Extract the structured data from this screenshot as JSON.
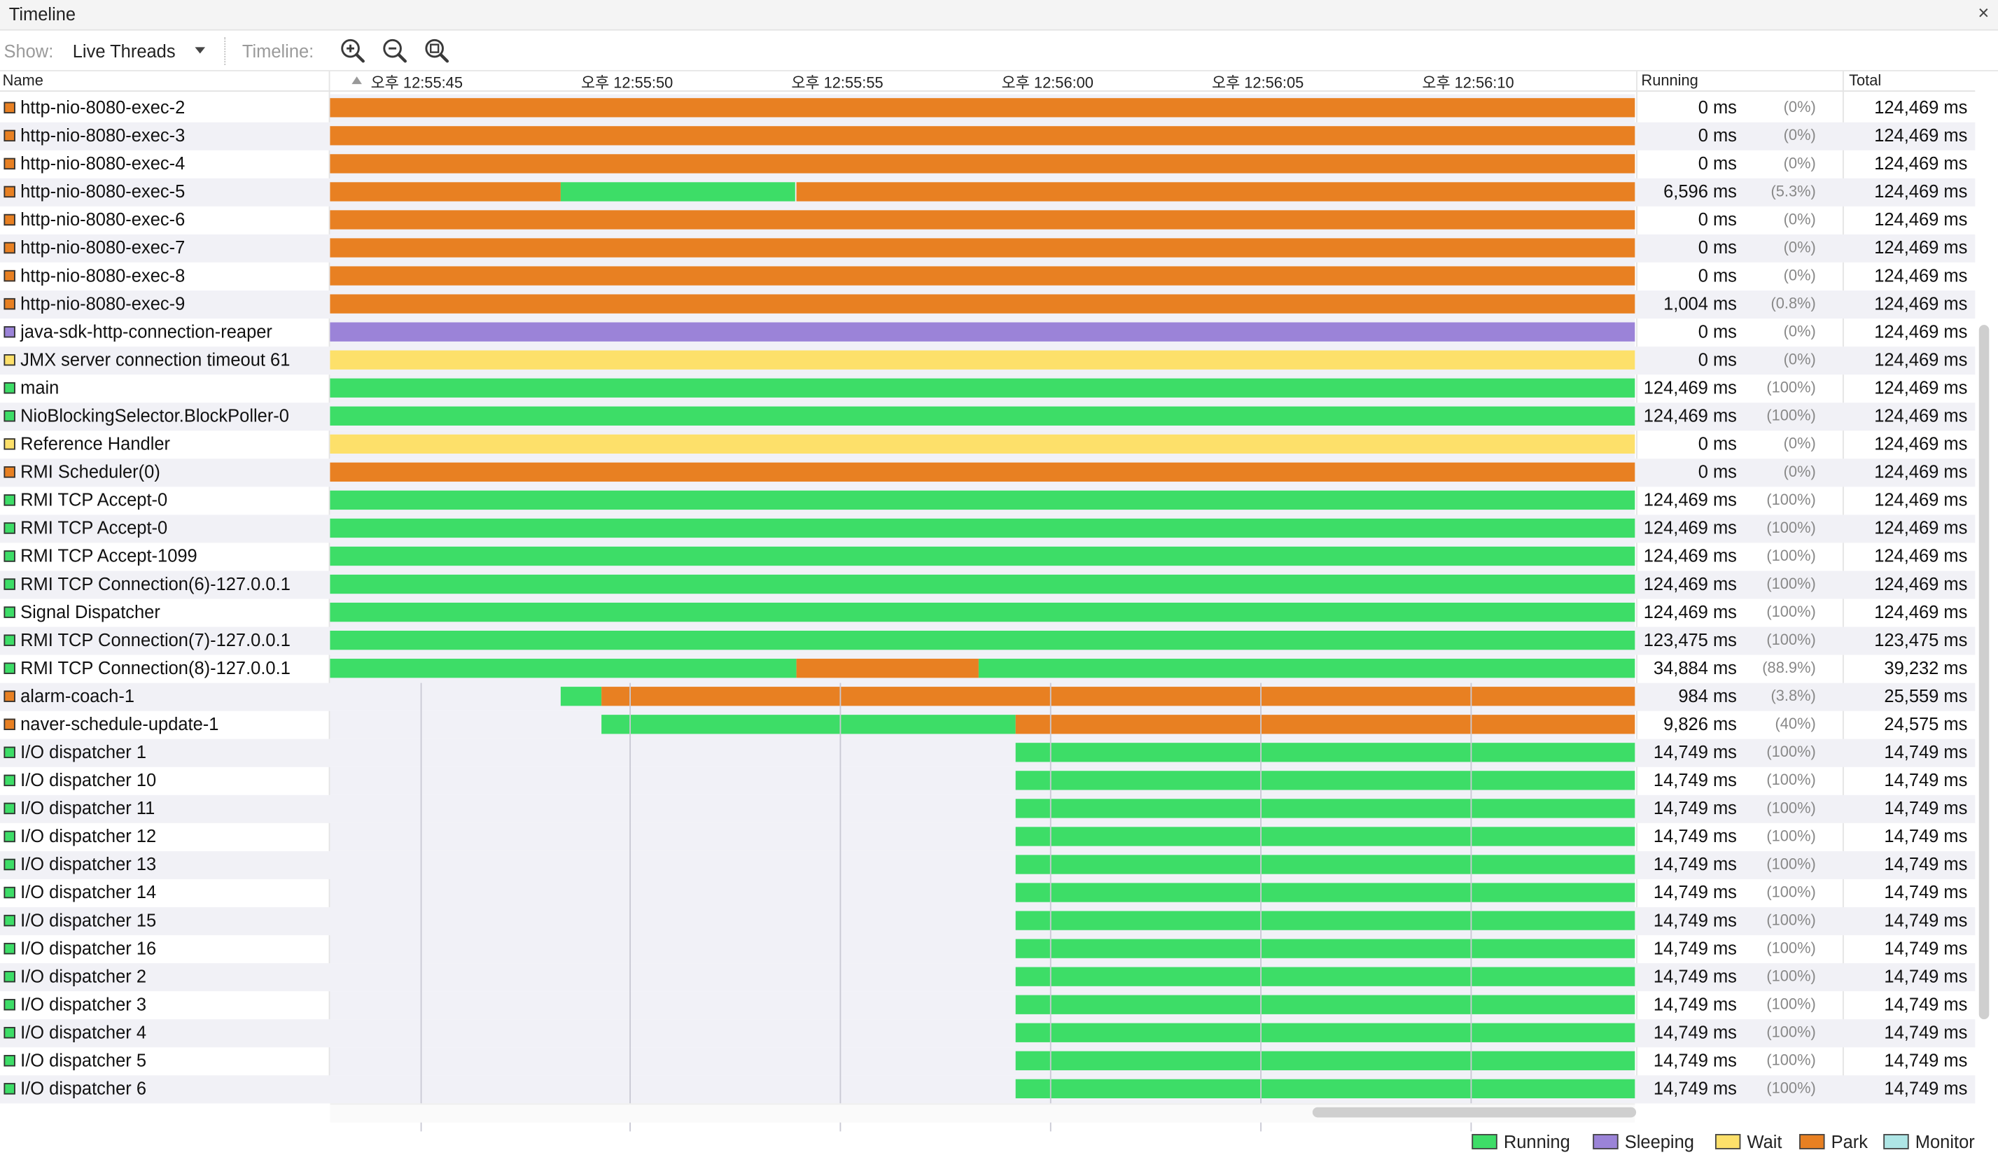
{
  "window": {
    "title": "Timeline",
    "close_glyph": "×"
  },
  "toolbar": {
    "show_label": "Show:",
    "show_value": "Live Threads",
    "timeline_label": "Timeline:",
    "zoom_in_icon": "zoom-in-icon",
    "zoom_out_icon": "zoom-out-icon",
    "zoom_fit_icon": "zoom-fit-icon"
  },
  "columns": {
    "name": "Name",
    "running": "Running",
    "total": "Total"
  },
  "axis": {
    "ticks": [
      "오후 12:55:45",
      "오후 12:55:50",
      "오후 12:55:55",
      "오후 12:56:00",
      "오후 12:56:05",
      "오후 12:56:10"
    ]
  },
  "colors": {
    "running": "#3ddd67",
    "sleeping": "#9b83d8",
    "wait": "#fde06a",
    "park": "#e88022",
    "monitor": "#aee6e6"
  },
  "legend": [
    {
      "key": "running",
      "label": "Running"
    },
    {
      "key": "sleeping",
      "label": "Sleeping"
    },
    {
      "key": "wait",
      "label": "Wait"
    },
    {
      "key": "park",
      "label": "Park"
    },
    {
      "key": "monitor",
      "label": "Monitor"
    }
  ],
  "threads": [
    {
      "name": "http-nio-8080-exec-2",
      "state": "park",
      "running": "0 ms",
      "pct": "(0%)",
      "total": "124,469 ms",
      "segments": [
        [
          0,
          1,
          "park"
        ]
      ]
    },
    {
      "name": "http-nio-8080-exec-3",
      "state": "park",
      "running": "0 ms",
      "pct": "(0%)",
      "total": "124,469 ms",
      "segments": [
        [
          0,
          1,
          "park"
        ]
      ]
    },
    {
      "name": "http-nio-8080-exec-4",
      "state": "park",
      "running": "0 ms",
      "pct": "(0%)",
      "total": "124,469 ms",
      "segments": [
        [
          0,
          1,
          "park"
        ]
      ]
    },
    {
      "name": "http-nio-8080-exec-5",
      "state": "park",
      "running": "6,596 ms",
      "pct": "(5.3%)",
      "total": "124,469 ms",
      "segments": [
        [
          0,
          0.177,
          "park"
        ],
        [
          0.177,
          0.357,
          "running"
        ],
        [
          0.357,
          1,
          "park"
        ]
      ]
    },
    {
      "name": "http-nio-8080-exec-6",
      "state": "park",
      "running": "0 ms",
      "pct": "(0%)",
      "total": "124,469 ms",
      "segments": [
        [
          0,
          1,
          "park"
        ]
      ]
    },
    {
      "name": "http-nio-8080-exec-7",
      "state": "park",
      "running": "0 ms",
      "pct": "(0%)",
      "total": "124,469 ms",
      "segments": [
        [
          0,
          1,
          "park"
        ]
      ]
    },
    {
      "name": "http-nio-8080-exec-8",
      "state": "park",
      "running": "0 ms",
      "pct": "(0%)",
      "total": "124,469 ms",
      "segments": [
        [
          0,
          1,
          "park"
        ]
      ]
    },
    {
      "name": "http-nio-8080-exec-9",
      "state": "park",
      "running": "1,004 ms",
      "pct": "(0.8%)",
      "total": "124,469 ms",
      "segments": [
        [
          0,
          1,
          "park"
        ]
      ]
    },
    {
      "name": "java-sdk-http-connection-reaper",
      "state": "sleeping",
      "running": "0 ms",
      "pct": "(0%)",
      "total": "124,469 ms",
      "segments": [
        [
          0,
          1,
          "sleeping"
        ]
      ]
    },
    {
      "name": "JMX server connection timeout 61",
      "state": "wait",
      "running": "0 ms",
      "pct": "(0%)",
      "total": "124,469 ms",
      "segments": [
        [
          0,
          1,
          "wait"
        ]
      ]
    },
    {
      "name": "main",
      "state": "running",
      "running": "124,469 ms",
      "pct": "(100%)",
      "total": "124,469 ms",
      "segments": [
        [
          0,
          1,
          "running"
        ]
      ]
    },
    {
      "name": "NioBlockingSelector.BlockPoller-0",
      "state": "running",
      "running": "124,469 ms",
      "pct": "(100%)",
      "total": "124,469 ms",
      "segments": [
        [
          0,
          1,
          "running"
        ]
      ]
    },
    {
      "name": "Reference Handler",
      "state": "wait",
      "running": "0 ms",
      "pct": "(0%)",
      "total": "124,469 ms",
      "segments": [
        [
          0,
          1,
          "wait"
        ]
      ]
    },
    {
      "name": "RMI Scheduler(0)",
      "state": "park",
      "running": "0 ms",
      "pct": "(0%)",
      "total": "124,469 ms",
      "segments": [
        [
          0,
          1,
          "park"
        ]
      ]
    },
    {
      "name": "RMI TCP Accept-0",
      "state": "running",
      "running": "124,469 ms",
      "pct": "(100%)",
      "total": "124,469 ms",
      "segments": [
        [
          0,
          1,
          "running"
        ]
      ]
    },
    {
      "name": "RMI TCP Accept-0",
      "state": "running",
      "running": "124,469 ms",
      "pct": "(100%)",
      "total": "124,469 ms",
      "segments": [
        [
          0,
          1,
          "running"
        ]
      ]
    },
    {
      "name": "RMI TCP Accept-1099",
      "state": "running",
      "running": "124,469 ms",
      "pct": "(100%)",
      "total": "124,469 ms",
      "segments": [
        [
          0,
          1,
          "running"
        ]
      ]
    },
    {
      "name": "RMI TCP Connection(6)-127.0.0.1",
      "state": "running",
      "running": "124,469 ms",
      "pct": "(100%)",
      "total": "124,469 ms",
      "segments": [
        [
          0,
          1,
          "running"
        ]
      ]
    },
    {
      "name": "Signal Dispatcher",
      "state": "running",
      "running": "124,469 ms",
      "pct": "(100%)",
      "total": "124,469 ms",
      "segments": [
        [
          0,
          1,
          "running"
        ]
      ]
    },
    {
      "name": "RMI TCP Connection(7)-127.0.0.1",
      "state": "running",
      "running": "123,475 ms",
      "pct": "(100%)",
      "total": "123,475 ms",
      "segments": [
        [
          0,
          1,
          "running"
        ]
      ]
    },
    {
      "name": "RMI TCP Connection(8)-127.0.0.1",
      "state": "running",
      "running": "34,884 ms",
      "pct": "(88.9%)",
      "total": "39,232 ms",
      "segments": [
        [
          0,
          0.357,
          "running"
        ],
        [
          0.357,
          0.497,
          "park"
        ],
        [
          0.497,
          1,
          "running"
        ]
      ]
    },
    {
      "name": "alarm-coach-1",
      "state": "park",
      "running": "984 ms",
      "pct": "(3.8%)",
      "total": "25,559 ms",
      "segments": [
        [
          0.177,
          0.208,
          "running"
        ],
        [
          0.208,
          1,
          "park"
        ]
      ]
    },
    {
      "name": "naver-schedule-update-1",
      "state": "park",
      "running": "9,826 ms",
      "pct": "(40%)",
      "total": "24,575 ms",
      "segments": [
        [
          0.208,
          0.525,
          "running"
        ],
        [
          0.525,
          1,
          "park"
        ]
      ]
    },
    {
      "name": "I/O dispatcher 1",
      "state": "running",
      "running": "14,749 ms",
      "pct": "(100%)",
      "total": "14,749 ms",
      "segments": [
        [
          0.525,
          1,
          "running"
        ]
      ]
    },
    {
      "name": "I/O dispatcher 10",
      "state": "running",
      "running": "14,749 ms",
      "pct": "(100%)",
      "total": "14,749 ms",
      "segments": [
        [
          0.525,
          1,
          "running"
        ]
      ]
    },
    {
      "name": "I/O dispatcher 11",
      "state": "running",
      "running": "14,749 ms",
      "pct": "(100%)",
      "total": "14,749 ms",
      "segments": [
        [
          0.525,
          1,
          "running"
        ]
      ]
    },
    {
      "name": "I/O dispatcher 12",
      "state": "running",
      "running": "14,749 ms",
      "pct": "(100%)",
      "total": "14,749 ms",
      "segments": [
        [
          0.525,
          1,
          "running"
        ]
      ]
    },
    {
      "name": "I/O dispatcher 13",
      "state": "running",
      "running": "14,749 ms",
      "pct": "(100%)",
      "total": "14,749 ms",
      "segments": [
        [
          0.525,
          1,
          "running"
        ]
      ]
    },
    {
      "name": "I/O dispatcher 14",
      "state": "running",
      "running": "14,749 ms",
      "pct": "(100%)",
      "total": "14,749 ms",
      "segments": [
        [
          0.525,
          1,
          "running"
        ]
      ]
    },
    {
      "name": "I/O dispatcher 15",
      "state": "running",
      "running": "14,749 ms",
      "pct": "(100%)",
      "total": "14,749 ms",
      "segments": [
        [
          0.525,
          1,
          "running"
        ]
      ]
    },
    {
      "name": "I/O dispatcher 16",
      "state": "running",
      "running": "14,749 ms",
      "pct": "(100%)",
      "total": "14,749 ms",
      "segments": [
        [
          0.525,
          1,
          "running"
        ]
      ]
    },
    {
      "name": "I/O dispatcher 2",
      "state": "running",
      "running": "14,749 ms",
      "pct": "(100%)",
      "total": "14,749 ms",
      "segments": [
        [
          0.525,
          1,
          "running"
        ]
      ]
    },
    {
      "name": "I/O dispatcher 3",
      "state": "running",
      "running": "14,749 ms",
      "pct": "(100%)",
      "total": "14,749 ms",
      "segments": [
        [
          0.525,
          1,
          "running"
        ]
      ]
    },
    {
      "name": "I/O dispatcher 4",
      "state": "running",
      "running": "14,749 ms",
      "pct": "(100%)",
      "total": "14,749 ms",
      "segments": [
        [
          0.525,
          1,
          "running"
        ]
      ]
    },
    {
      "name": "I/O dispatcher 5",
      "state": "running",
      "running": "14,749 ms",
      "pct": "(100%)",
      "total": "14,749 ms",
      "segments": [
        [
          0.525,
          1,
          "running"
        ]
      ]
    },
    {
      "name": "I/O dispatcher 6",
      "state": "running",
      "running": "14,749 ms",
      "pct": "(100%)",
      "total": "14,749 ms",
      "segments": [
        [
          0.525,
          1,
          "running"
        ]
      ]
    }
  ]
}
